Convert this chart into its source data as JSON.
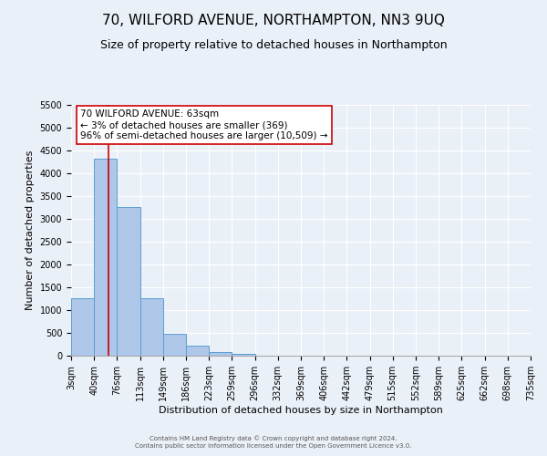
{
  "title": "70, WILFORD AVENUE, NORTHAMPTON, NN3 9UQ",
  "subtitle": "Size of property relative to detached houses in Northampton",
  "xlabel": "Distribution of detached houses by size in Northampton",
  "ylabel": "Number of detached properties",
  "bin_edges": [
    3,
    40,
    76,
    113,
    149,
    186,
    223,
    259,
    296,
    332,
    369,
    406,
    442,
    479,
    515,
    552,
    589,
    625,
    662,
    698,
    735
  ],
  "bar_heights": [
    1270,
    4330,
    3270,
    1270,
    480,
    230,
    90,
    40,
    10,
    5,
    2,
    0,
    0,
    0,
    0,
    0,
    0,
    0,
    0,
    0
  ],
  "bar_color": "#aec6e8",
  "bar_edge_color": "#5a9fd4",
  "property_line_x": 63,
  "property_line_color": "#cc0000",
  "annotation_text": "70 WILFORD AVENUE: 63sqm\n← 3% of detached houses are smaller (369)\n96% of semi-detached houses are larger (10,509) →",
  "annotation_box_color": "#ffffff",
  "annotation_box_edge_color": "#cc0000",
  "ylim": [
    0,
    5500
  ],
  "yticks": [
    0,
    500,
    1000,
    1500,
    2000,
    2500,
    3000,
    3500,
    4000,
    4500,
    5000,
    5500
  ],
  "footer_line1": "Contains HM Land Registry data © Crown copyright and database right 2024.",
  "footer_line2": "Contains public sector information licensed under the Open Government Licence v3.0.",
  "bg_color": "#eaf0f8",
  "plot_bg_color": "#eaf0f8",
  "grid_color": "#ffffff",
  "title_fontsize": 11,
  "subtitle_fontsize": 9,
  "ylabel_fontsize": 8,
  "xlabel_fontsize": 8,
  "tick_fontsize": 7,
  "tick_labels": [
    "3sqm",
    "40sqm",
    "76sqm",
    "113sqm",
    "149sqm",
    "186sqm",
    "223sqm",
    "259sqm",
    "296sqm",
    "332sqm",
    "369sqm",
    "406sqm",
    "442sqm",
    "479sqm",
    "515sqm",
    "552sqm",
    "589sqm",
    "625sqm",
    "662sqm",
    "698sqm",
    "735sqm"
  ]
}
